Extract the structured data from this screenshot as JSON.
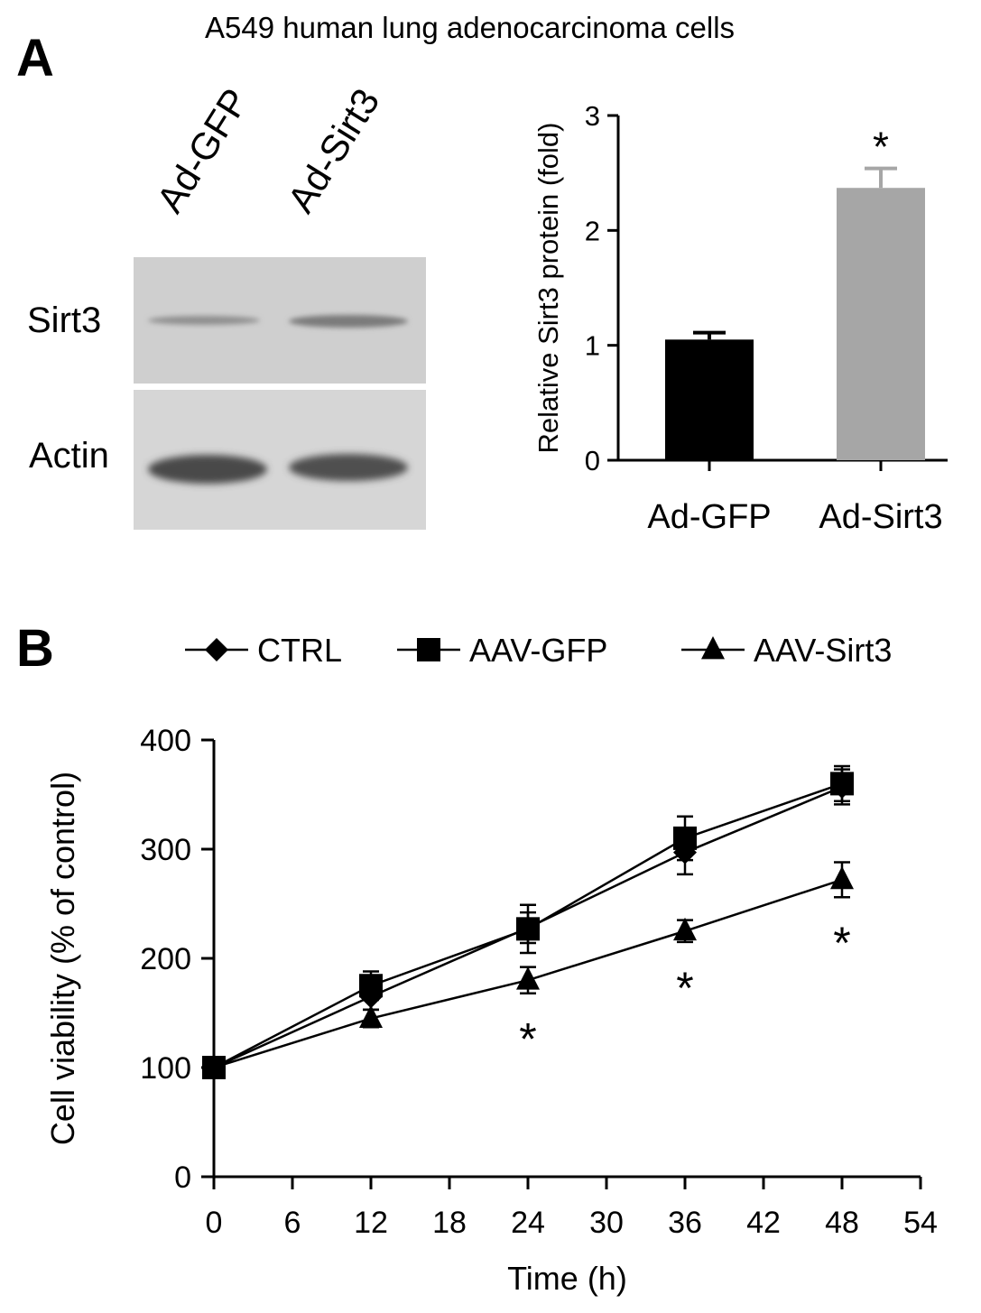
{
  "figure": {
    "title": "A549 human lung adenocarcinoma cells",
    "panel_a_label": "A",
    "panel_b_label": "B"
  },
  "western_blot": {
    "lanes": [
      "Ad-GFP",
      "Ad-Sirt3"
    ],
    "rows": [
      "Sirt3",
      "Actin"
    ]
  },
  "chart_data": [
    {
      "type": "bar",
      "categories": [
        "Ad-GFP",
        "Ad-Sirt3"
      ],
      "values": [
        1.05,
        2.37
      ],
      "errors": [
        0.06,
        0.17
      ],
      "colors": [
        "#000000",
        "#a6a6a6"
      ],
      "significance": [
        "",
        "*"
      ],
      "ylabel": "Relative Sirt3 protein (fold)",
      "xlabel": "",
      "ylim": [
        0,
        3
      ],
      "yticks": [
        0,
        1,
        2,
        3
      ]
    },
    {
      "type": "line",
      "x": [
        0,
        12,
        24,
        36,
        48
      ],
      "series": [
        {
          "name": "CTRL",
          "marker": "diamond",
          "values": [
            100,
            165,
            228,
            297,
            357
          ],
          "errors": [
            4,
            12,
            14,
            20,
            16
          ]
        },
        {
          "name": "AAV-GFP",
          "marker": "square",
          "values": [
            100,
            175,
            227,
            310,
            360
          ],
          "errors": [
            4,
            13,
            22,
            20,
            16
          ]
        },
        {
          "name": "AAV-Sirt3",
          "marker": "triangle",
          "values": [
            100,
            145,
            180,
            225,
            272
          ],
          "errors": [
            4,
            8,
            12,
            10,
            16
          ]
        }
      ],
      "significance": [
        "",
        "",
        "*",
        "*",
        "*"
      ],
      "xlabel": "Time (h)",
      "ylabel": "Cell viability (% of control)",
      "xlim": [
        0,
        54
      ],
      "xticks": [
        0,
        6,
        12,
        18,
        24,
        30,
        36,
        42,
        48,
        54
      ],
      "ylim": [
        0,
        400
      ],
      "yticks": [
        0,
        100,
        200,
        300,
        400
      ],
      "legend_position": "top"
    }
  ]
}
